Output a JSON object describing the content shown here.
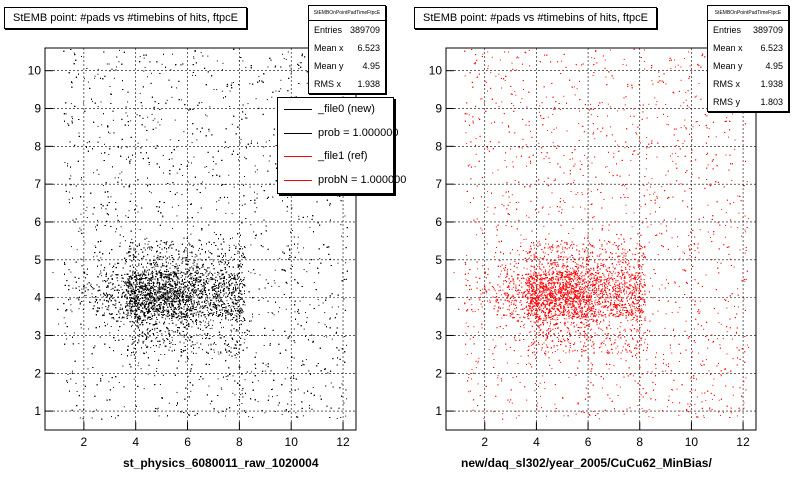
{
  "colors": {
    "left_points": "#000000",
    "right_points": "#ff0000",
    "background": "#ffffff",
    "grid": "#000000"
  },
  "chart_data": [
    {
      "type": "scatter",
      "title": "StEMB point: #pads vs #timebins of hits, ftpcE",
      "xlabel": "st_physics_6080011_raw_1020004",
      "ylabel": "",
      "xlim": [
        0.5,
        12.5
      ],
      "ylim": [
        0.5,
        10.6
      ],
      "xticks": [
        "2",
        "4",
        "6",
        "8",
        "10",
        "12"
      ],
      "yticks": [
        "1",
        "2",
        "3",
        "4",
        "5",
        "6",
        "7",
        "8",
        "9",
        "10"
      ],
      "grid": true,
      "point_color": "#000000",
      "series": [
        {
          "name": "_file0 (new)"
        }
      ],
      "stats": {
        "name": "StEMBOnPointPadTimeFtpcE",
        "rows": [
          {
            "label": "Entries",
            "value": "389709"
          },
          {
            "label": "Mean x",
            "value": "6.523"
          },
          {
            "label": "Mean y",
            "value": "4.95"
          },
          {
            "label": "RMS x",
            "value": "1.938"
          }
        ]
      },
      "legend": {
        "placement": "top-right",
        "entries": [
          {
            "label": "_file0 (new)",
            "color": "#000000"
          },
          {
            "label": "prob = 1.000000",
            "color": "#000000"
          },
          {
            "label": "_file1 (ref)",
            "color": "#ff0000"
          },
          {
            "label": "probN = 1.000000",
            "color": "#ff0000"
          }
        ]
      }
    },
    {
      "type": "scatter",
      "title": "StEMB point: #pads vs #timebins of hits, ftpcE",
      "xlabel": "new/daq_sl302/year_2005/CuCu62_MinBias/",
      "ylabel": "",
      "xlim": [
        0.5,
        12.5
      ],
      "ylim": [
        0.5,
        10.6
      ],
      "xticks": [
        "2",
        "4",
        "6",
        "8",
        "10",
        "12"
      ],
      "yticks": [
        "1",
        "2",
        "3",
        "4",
        "5",
        "6",
        "7",
        "8",
        "9",
        "10"
      ],
      "grid": true,
      "point_color": "#ff0000",
      "stats": {
        "name": "StEMBOnPointPadTimeFtpcE",
        "rows": [
          {
            "label": "Entries",
            "value": "389709"
          },
          {
            "label": "Mean x",
            "value": "6.523"
          },
          {
            "label": "Mean y",
            "value": "4.95"
          },
          {
            "label": "RMS x",
            "value": "1.938"
          },
          {
            "label": "RMS y",
            "value": "1.803"
          }
        ]
      }
    }
  ]
}
